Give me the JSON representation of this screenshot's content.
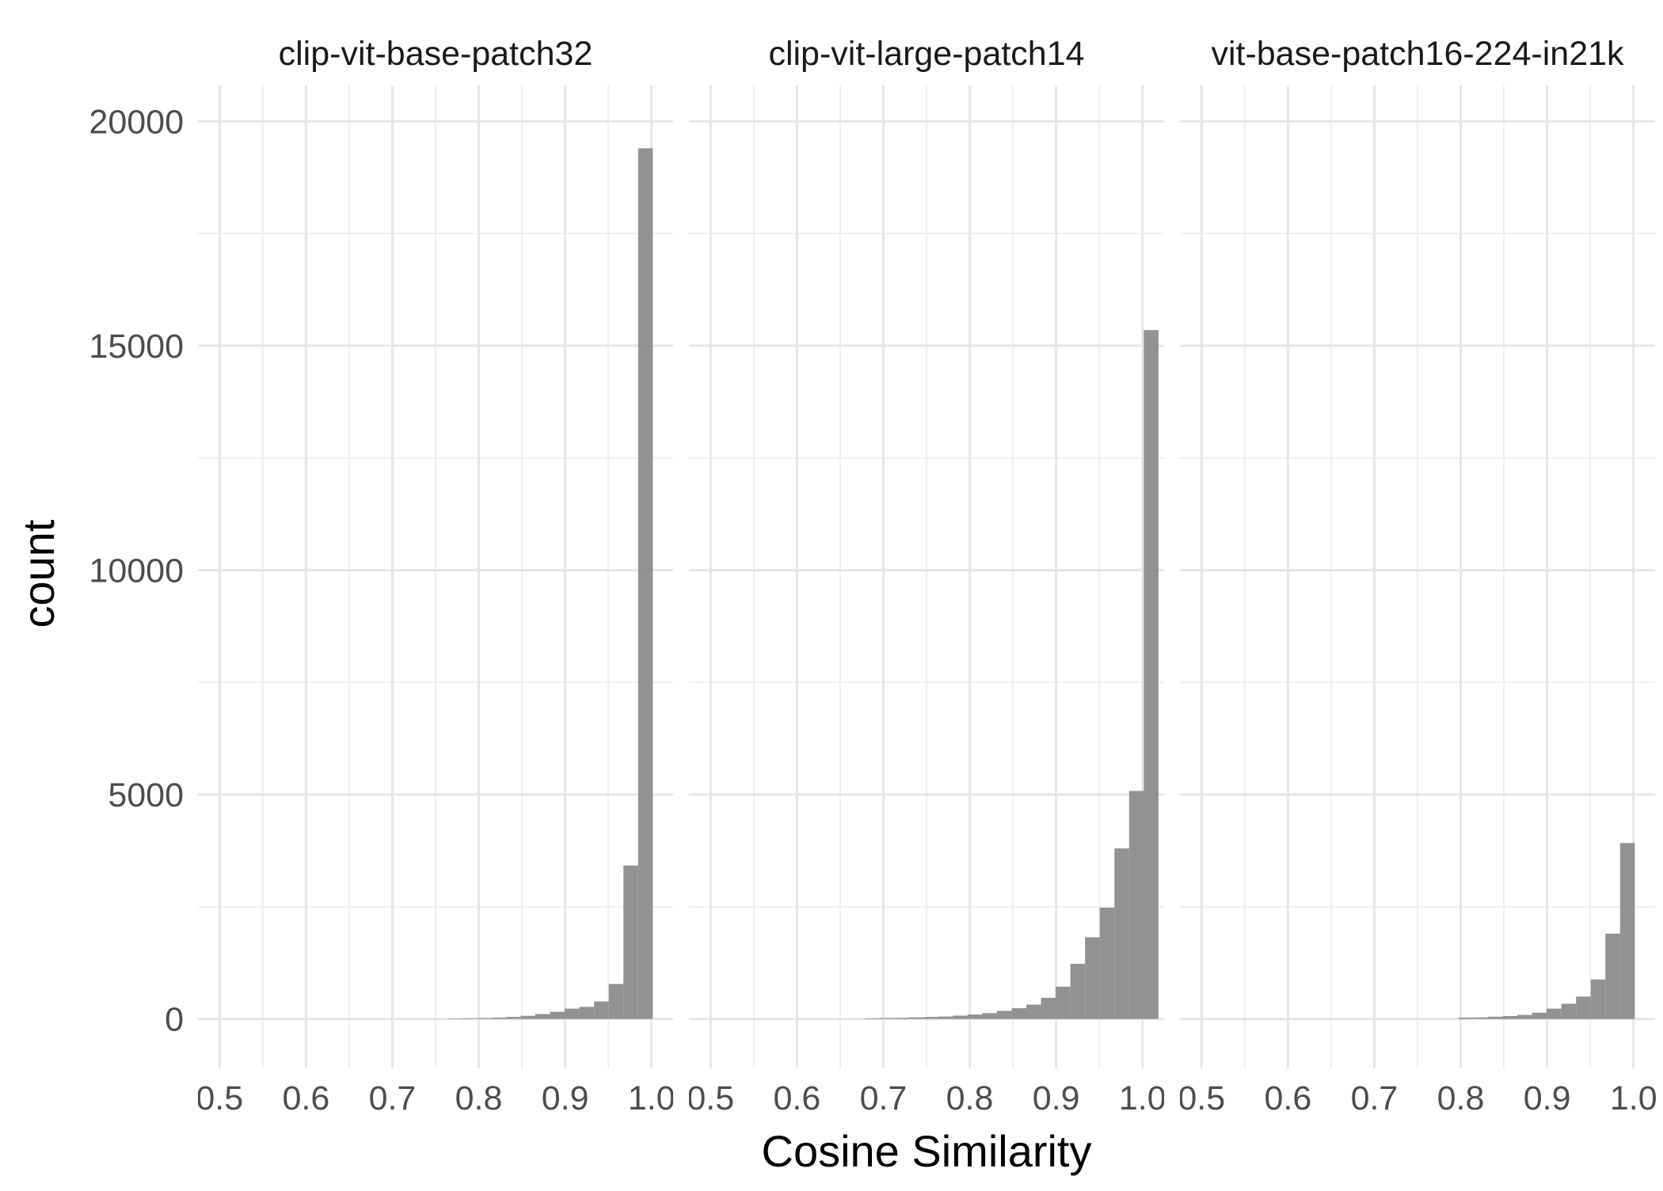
{
  "chart_data": {
    "type": "bar",
    "xlabel": "Cosine Similarity",
    "ylabel": "count",
    "x_range": [
      0.475,
      1.025
    ],
    "y_range": [
      -1100,
      20800
    ],
    "x_ticks": [
      "0.5",
      "0.6",
      "0.7",
      "0.8",
      "0.9",
      "1.0"
    ],
    "x_tick_values": [
      0.5,
      0.6,
      0.7,
      0.8,
      0.9,
      1.0
    ],
    "y_ticks": [
      "0",
      "5000",
      "10000",
      "15000",
      "20000"
    ],
    "y_tick_values": [
      0,
      5000,
      10000,
      15000,
      20000
    ],
    "bin_width": 0.017,
    "bar_color": "#8c8c8c",
    "panels": [
      {
        "title": "clip-vit-base-patch32",
        "bins": [
          {
            "x": 0.772,
            "count": 10
          },
          {
            "x": 0.789,
            "count": 15
          },
          {
            "x": 0.806,
            "count": 20
          },
          {
            "x": 0.823,
            "count": 30
          },
          {
            "x": 0.84,
            "count": 45
          },
          {
            "x": 0.857,
            "count": 70
          },
          {
            "x": 0.874,
            "count": 110
          },
          {
            "x": 0.891,
            "count": 160
          },
          {
            "x": 0.908,
            "count": 230
          },
          {
            "x": 0.925,
            "count": 270
          },
          {
            "x": 0.942,
            "count": 390
          },
          {
            "x": 0.959,
            "count": 780
          },
          {
            "x": 0.976,
            "count": 3420
          },
          {
            "x": 0.993,
            "count": 19400
          }
        ]
      },
      {
        "title": "clip-vit-large-patch14",
        "bins": [
          {
            "x": 0.687,
            "count": 15
          },
          {
            "x": 0.704,
            "count": 20
          },
          {
            "x": 0.721,
            "count": 25
          },
          {
            "x": 0.738,
            "count": 35
          },
          {
            "x": 0.755,
            "count": 45
          },
          {
            "x": 0.772,
            "count": 55
          },
          {
            "x": 0.789,
            "count": 75
          },
          {
            "x": 0.806,
            "count": 100
          },
          {
            "x": 0.823,
            "count": 130
          },
          {
            "x": 0.84,
            "count": 180
          },
          {
            "x": 0.857,
            "count": 240
          },
          {
            "x": 0.874,
            "count": 320
          },
          {
            "x": 0.891,
            "count": 470
          },
          {
            "x": 0.908,
            "count": 720
          },
          {
            "x": 0.925,
            "count": 1230
          },
          {
            "x": 0.942,
            "count": 1820
          },
          {
            "x": 0.959,
            "count": 2480
          },
          {
            "x": 0.976,
            "count": 3800
          },
          {
            "x": 0.993,
            "count": 5080
          },
          {
            "x": 1.01,
            "count": 15350
          }
        ]
      },
      {
        "title": "vit-base-patch16-224-in21k",
        "bins": [
          {
            "x": 0.806,
            "count": 30
          },
          {
            "x": 0.823,
            "count": 35
          },
          {
            "x": 0.84,
            "count": 50
          },
          {
            "x": 0.857,
            "count": 65
          },
          {
            "x": 0.874,
            "count": 90
          },
          {
            "x": 0.891,
            "count": 140
          },
          {
            "x": 0.908,
            "count": 230
          },
          {
            "x": 0.925,
            "count": 340
          },
          {
            "x": 0.942,
            "count": 500
          },
          {
            "x": 0.959,
            "count": 880
          },
          {
            "x": 0.976,
            "count": 1900
          },
          {
            "x": 0.993,
            "count": 3920
          }
        ]
      }
    ]
  }
}
